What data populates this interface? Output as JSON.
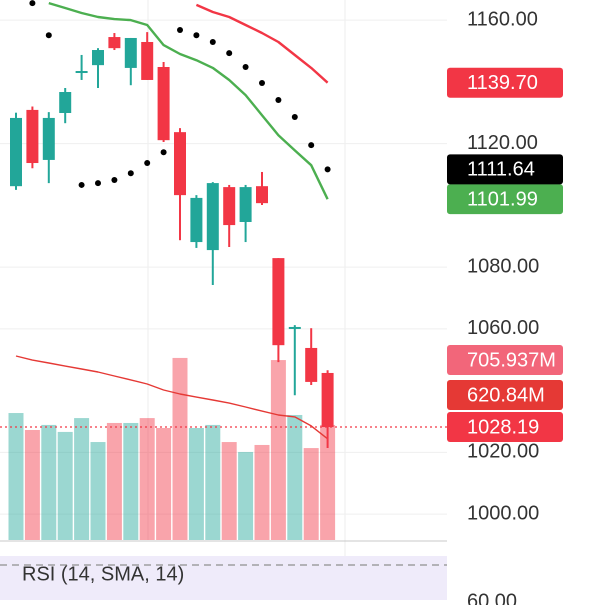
{
  "chart_data": {
    "type": "candlestick",
    "ylim": [
      991.6,
      1166.5
    ],
    "yticks": [
      {
        "value": 1160,
        "label": "1160.00"
      },
      {
        "value": 1120,
        "label": "1120.00"
      },
      {
        "value": 1080,
        "label": "1080.00"
      },
      {
        "value": 1060,
        "label": "1060.00"
      },
      {
        "value": 1020,
        "label": "1020.00"
      },
      {
        "value": 1000,
        "label": "1000.00"
      }
    ],
    "grid": true,
    "up_color": "#22a699",
    "down_color": "#f23645",
    "open": [
      1106.2,
      1130.9,
      1114.7,
      1129.9,
      1142.9,
      1145.4,
      1154.5,
      1144.5,
      1152.9,
      1144.8,
      1123.7,
      1088.1,
      1085.5,
      1105.9,
      1094.6,
      1106.2,
      1082.9,
      1060.2,
      1053.8,
      1045.7
    ],
    "high": [
      1130,
      1132,
      1130.2,
      1138,
      1148.7,
      1150.9,
      1155.8,
      1154.2,
      1156.1,
      1146.4,
      1125,
      1103.3,
      1107.5,
      1106.6,
      1106.6,
      1110.8,
      1082.9,
      1061.2,
      1060.2,
      1046.6
    ],
    "low": [
      1105,
      1112,
      1107.2,
      1126.6,
      1140.6,
      1138,
      1150.3,
      1138.9,
      1140.6,
      1120.5,
      1088.7,
      1086.2,
      1074.2,
      1086.5,
      1088.1,
      1100.1,
      1049.2,
      1038.5,
      1041.8,
      1021.4
    ],
    "close": [
      1128.3,
      1113.7,
      1128.3,
      1136.7,
      1143.5,
      1150.3,
      1150.9,
      1154.2,
      1140.6,
      1121.1,
      1103.3,
      1102.4,
      1107.2,
      1093.6,
      1105.9,
      1100.7,
      1054.7,
      1060.6,
      1042.8,
      1028.19
    ],
    "series": [
      {
        "color": "#f23645",
        "values": [
          null,
          null,
          null,
          null,
          null,
          null,
          null,
          null,
          null,
          null,
          null,
          1164.9,
          1162.6,
          1161.0,
          1158.4,
          1155.8,
          1152.9,
          1148.7,
          1144.5,
          1139.7
        ],
        "value_labels": [
          null,
          null,
          null,
          null,
          null,
          null,
          null,
          null,
          null,
          null,
          null,
          null,
          null,
          null,
          null,
          null,
          null,
          null,
          null,
          "1139.70"
        ]
      },
      {
        "color": "#4caf50",
        "values": [
          null,
          null,
          1165.5,
          1163.9,
          1162.3,
          1161.0,
          1160.3,
          1160,
          1158.4,
          1151.9,
          1149.0,
          1147.0,
          1144.5,
          1140.6,
          1135.7,
          1129.2,
          1122.7,
          1117.8,
          1113.0,
          1101.99
        ]
      },
      {
        "color": "#000000",
        "type": "dots",
        "values": [
          null,
          1165.5,
          1155.1,
          null,
          1106.6,
          1107.2,
          1108.2,
          1110.4,
          1113.7,
          1117.2,
          1156.8,
          1155.1,
          1152.9,
          1149.3,
          1144.8,
          1139.6,
          1134.1,
          1128.6,
          1119.5,
          1111.64
        ]
      }
    ],
    "y2lim": [
      0,
      3313
    ],
    "volume": {
      "axis": "y2",
      "values": [
        779,
        675,
        706,
        663,
        748,
        601,
        718,
        718,
        748,
        687,
        1117,
        687,
        706,
        601,
        540,
        583,
        1104,
        767,
        564,
        705.937
      ],
      "value_labels": [
        null,
        null,
        null,
        null,
        null,
        null,
        null,
        null,
        null,
        null,
        null,
        null,
        null,
        null,
        null,
        null,
        null,
        null,
        null,
        "705.937M"
      ]
    },
    "volume_ma": {
      "axis": "y2",
      "color": "#e53935",
      "values": [
        1129,
        1104,
        1086,
        1067,
        1049,
        1031,
        1006,
        982,
        957,
        920,
        896,
        877,
        859,
        840,
        816,
        791,
        767,
        755,
        700,
        620.84
      ],
      "value_labels": [
        null,
        null,
        null,
        null,
        null,
        null,
        null,
        null,
        null,
        null,
        null,
        null,
        null,
        null,
        null,
        null,
        null,
        null,
        null,
        "620.84M"
      ]
    },
    "rsi": {
      "title": "RSI (14, SMA, 14)",
      "tick_label": "60.00"
    }
  }
}
